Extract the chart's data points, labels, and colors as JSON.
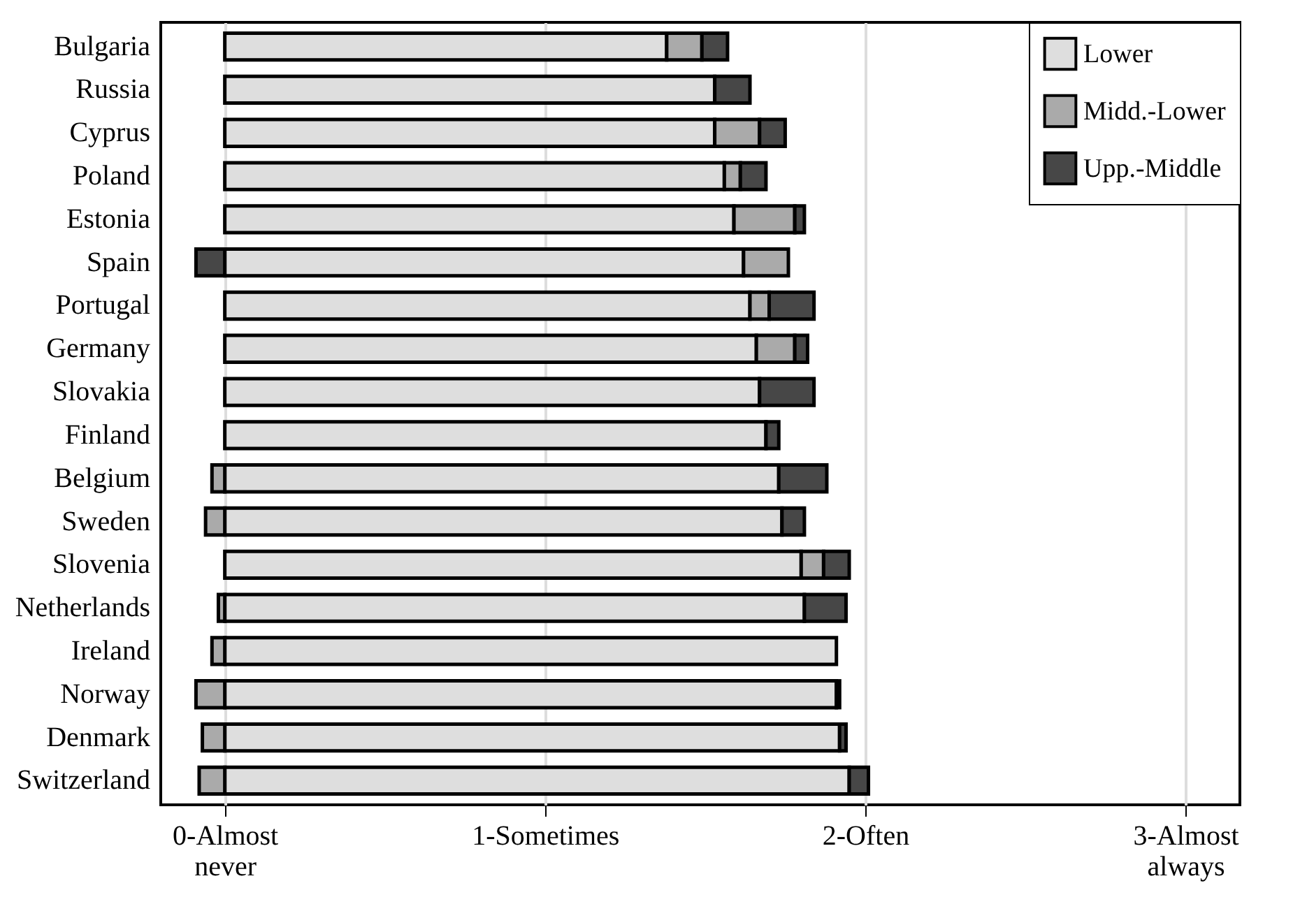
{
  "chart_data": {
    "type": "bar",
    "orientation": "horizontal",
    "stacked": true,
    "categories": [
      "Bulgaria",
      "Russia",
      "Cyprus",
      "Poland",
      "Estonia",
      "Spain",
      "Portugal",
      "Germany",
      "Slovakia",
      "Finland",
      "Belgium",
      "Sweden",
      "Slovenia",
      "Netherlands",
      "Ireland",
      "Norway",
      "Denmark",
      "Switzerland"
    ],
    "series": [
      {
        "name": "Lower",
        "color": "#dedede",
        "values": [
          1.38,
          1.53,
          1.53,
          1.56,
          1.59,
          1.62,
          1.64,
          1.66,
          1.67,
          1.69,
          1.73,
          1.74,
          1.8,
          1.81,
          1.91,
          1.91,
          1.92,
          1.95
        ]
      },
      {
        "name": "Midd.-Lower",
        "color": "#aaaaaa",
        "values": [
          0.11,
          null,
          0.14,
          0.05,
          0.19,
          0.14,
          0.06,
          0.12,
          null,
          null,
          -0.04,
          -0.06,
          0.07,
          -0.02,
          -0.04,
          -0.09,
          -0.07,
          -0.08
        ]
      },
      {
        "name": "Upp.-Middle",
        "color": "#474747",
        "values": [
          0.08,
          0.11,
          0.08,
          0.08,
          0.03,
          -0.09,
          0.14,
          0.04,
          0.17,
          0.04,
          0.15,
          0.07,
          0.08,
          0.13,
          null,
          0.01,
          0.02,
          0.06
        ]
      }
    ],
    "xlim": [
      -0.2,
      3.17
    ],
    "xticks": [
      {
        "value": 0,
        "label": "0-Almost never"
      },
      {
        "value": 1,
        "label": "1-Sometimes"
      },
      {
        "value": 2,
        "label": "2-Often"
      },
      {
        "value": 3,
        "label": "3-Almost always"
      }
    ],
    "grid": "x",
    "legend": "top right"
  }
}
